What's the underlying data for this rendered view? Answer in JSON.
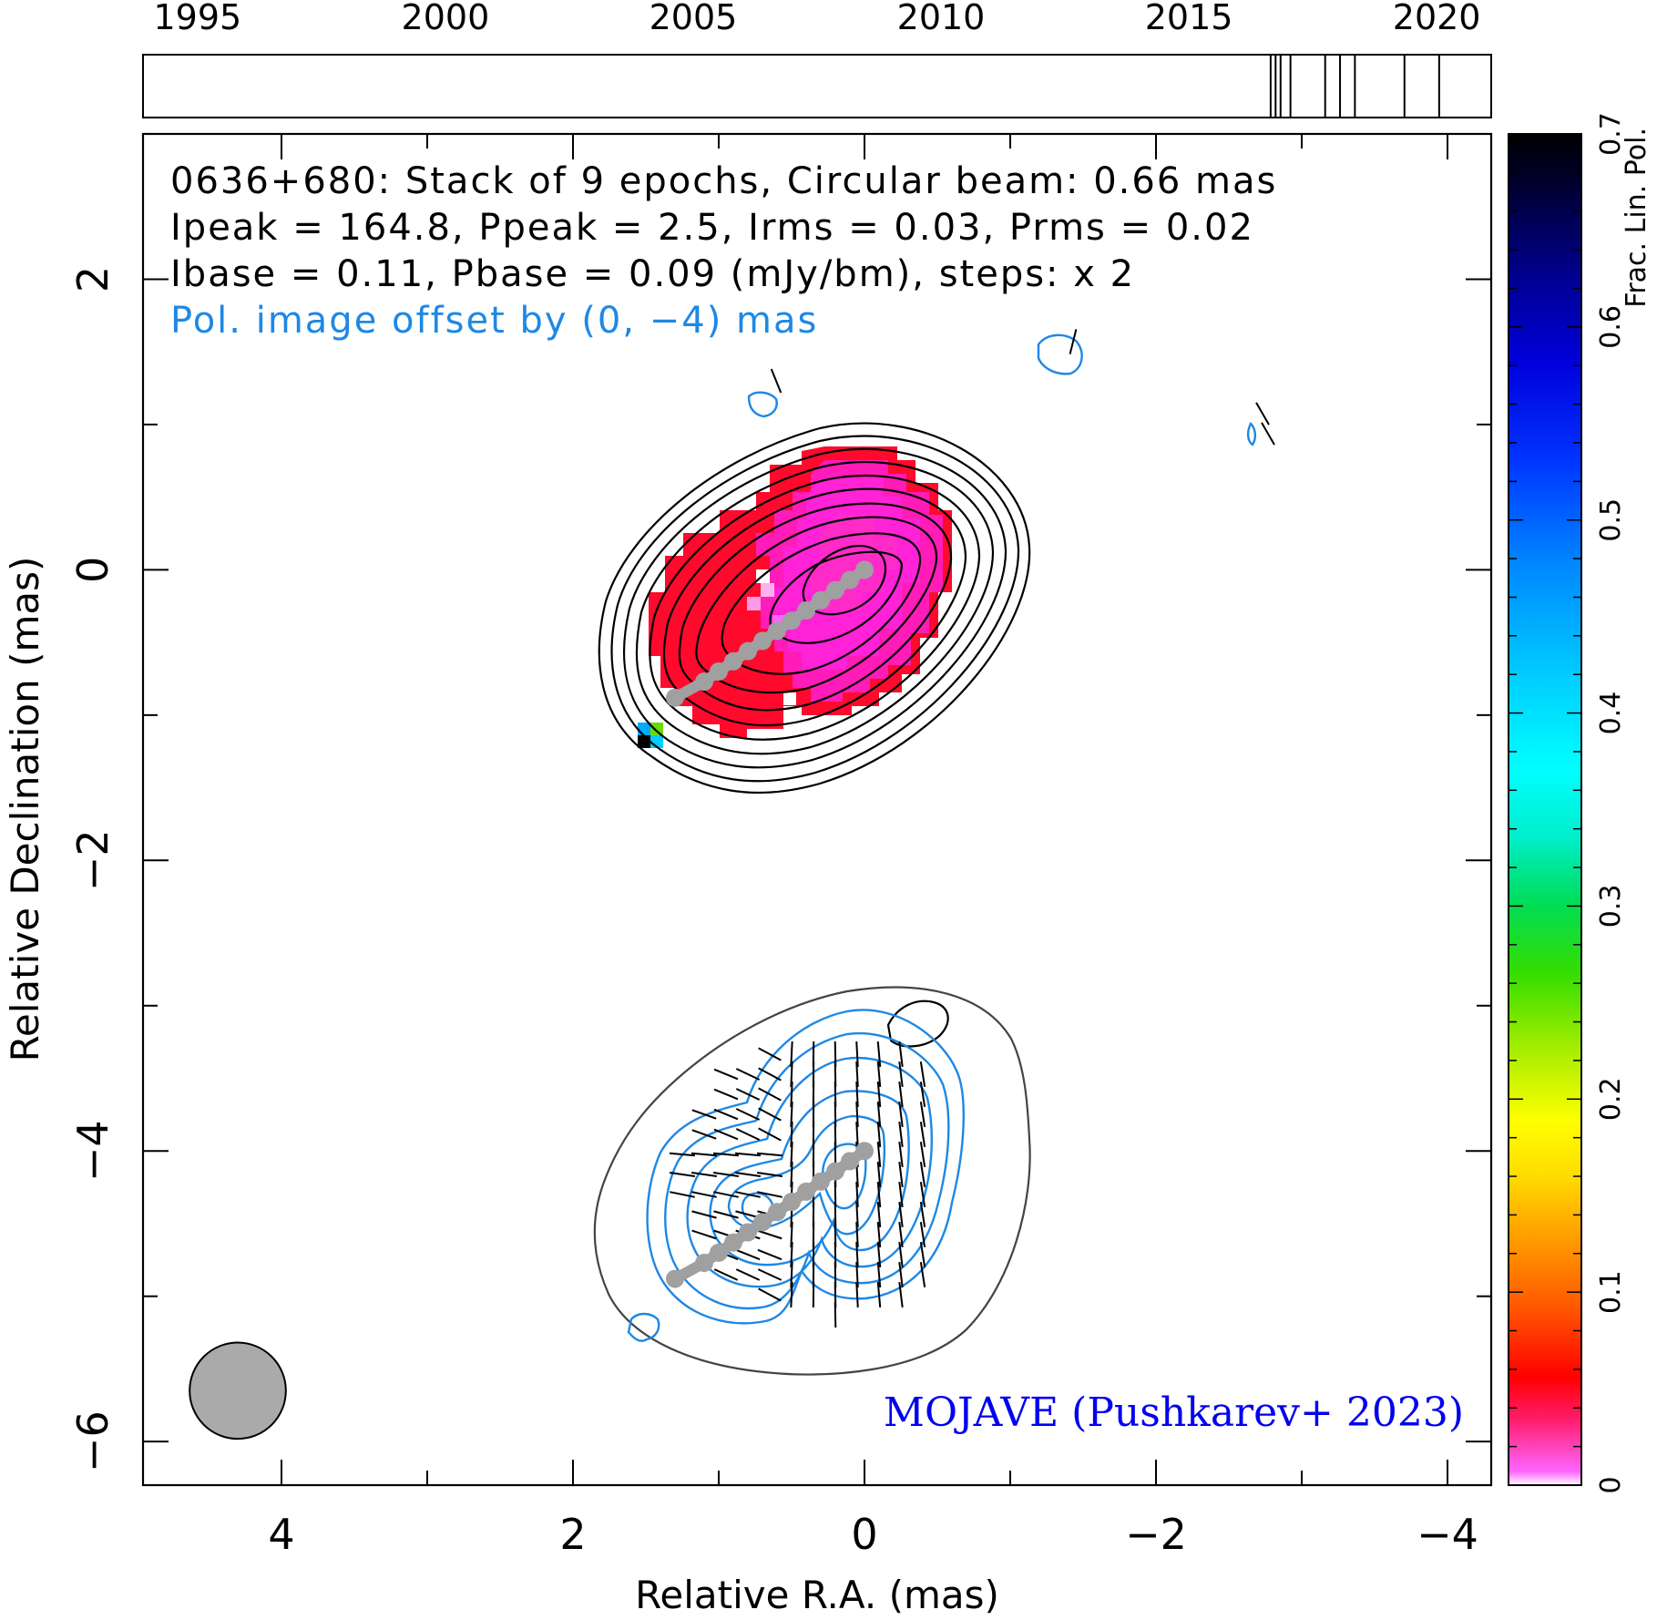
{
  "chart_data": {
    "type": "heatmap",
    "source": "0636+680",
    "info_lines": [
      "0636+680: Stack of 9 epochs, Circular beam: 0.66 mas",
      "Ipeak = 164.8, Ppeak = 2.5, Irms = 0.03, Prms = 0.02",
      "Ibase = 0.11, Pbase = 0.09 (mJy/bm), steps: x 2"
    ],
    "offset_note": "Pol. image offset by (0, −4) mas",
    "credit": "MOJAVE (Pushkarev+ 2023)",
    "xlabel": "Relative R.A. (mas)",
    "ylabel": "Relative Declination (mas)",
    "xlim": [
      4.95,
      -4.3
    ],
    "ylim": [
      -6.3,
      3.0
    ],
    "x_ticks": [
      {
        "value": 4,
        "label": "4"
      },
      {
        "value": 2,
        "label": "2"
      },
      {
        "value": 0,
        "label": "0"
      },
      {
        "value": -2,
        "label": "−2"
      },
      {
        "value": -4,
        "label": "−4"
      }
    ],
    "y_ticks": [
      {
        "value": 2,
        "label": "2"
      },
      {
        "value": 0,
        "label": "0"
      },
      {
        "value": -2,
        "label": "−2"
      },
      {
        "value": -4,
        "label": "−4"
      },
      {
        "value": -6,
        "label": "−6"
      }
    ],
    "epoch_timeline": {
      "range": [
        1993.9,
        2021.1
      ],
      "tick_labels": [
        "1995",
        "2000",
        "2005",
        "2010",
        "2015",
        "2020"
      ],
      "tick_years": [
        1995,
        2000,
        2005,
        2010,
        2015,
        2020
      ],
      "epochs": [
        2016.65,
        2016.75,
        2016.85,
        2017.05,
        2017.75,
        2018.05,
        2018.35,
        2019.35,
        2020.05
      ]
    },
    "colorbar": {
      "label": "Frac. Lin. Pol.",
      "range": [
        0,
        0.7
      ],
      "tick_values": [
        0,
        0.1,
        0.2,
        0.3,
        0.4,
        0.5,
        0.6,
        0.7
      ],
      "tick_labels": [
        "0",
        "0.1",
        "0.2",
        "0.3",
        "0.4",
        "0.5",
        "0.6",
        "0.7"
      ]
    },
    "stokes_i_contours_mJy": [
      0.11,
      0.22,
      0.44,
      0.88,
      1.76,
      3.52,
      7.04,
      14.08,
      28.16,
      56.32,
      112.64
    ],
    "beam": {
      "diameter_mas": 0.66,
      "center_mas": [
        4.3,
        -5.65
      ]
    },
    "jet_ridge_points_mas": [
      [
        0.0,
        0.0
      ],
      [
        0.1,
        -0.07
      ],
      [
        0.2,
        -0.14
      ],
      [
        0.3,
        -0.21
      ],
      [
        0.4,
        -0.28
      ],
      [
        0.5,
        -0.35
      ],
      [
        0.6,
        -0.42
      ],
      [
        0.7,
        -0.49
      ],
      [
        0.8,
        -0.56
      ],
      [
        0.9,
        -0.63
      ],
      [
        1.0,
        -0.7
      ],
      [
        1.1,
        -0.77
      ],
      [
        1.3,
        -0.88
      ]
    ],
    "colors": {
      "ridge": "#a0a0a0",
      "pol_contours": "#1e88e5",
      "i_contours": "#000000",
      "credit": "#0000ee",
      "offset_note": "#1e88e5",
      "fracpol_low": "#ff00ff",
      "fracpol_mid": "#ff0033"
    }
  }
}
